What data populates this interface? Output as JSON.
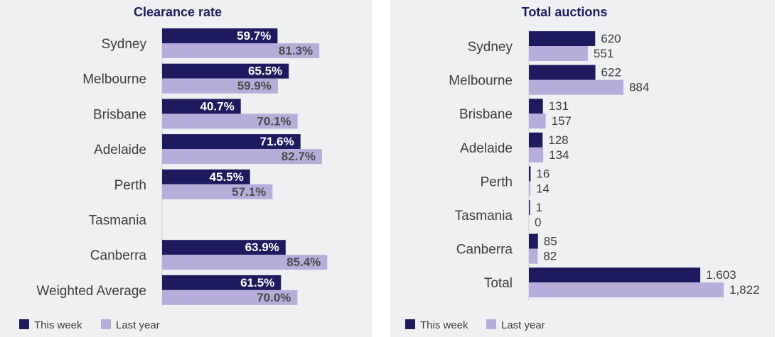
{
  "colors": {
    "this_week": "#1d1a5e",
    "last_year": "#b7addb",
    "panel_bg": "#eef0f2"
  },
  "legend": {
    "this_week": "This week",
    "last_year": "Last year"
  },
  "chart_data": [
    {
      "type": "bar",
      "orientation": "horizontal",
      "title": "Clearance rate",
      "categories": [
        "Sydney",
        "Melbourne",
        "Brisbane",
        "Adelaide",
        "Perth",
        "Tasmania",
        "Canberra",
        "Weighted Average"
      ],
      "series": [
        {
          "name": "This week",
          "values": [
            59.7,
            65.5,
            40.7,
            71.6,
            45.5,
            null,
            63.9,
            61.5
          ],
          "labels": [
            "59.7%",
            "65.5%",
            "40.7%",
            "71.6%",
            "45.5%",
            "",
            "63.9%",
            "61.5%"
          ]
        },
        {
          "name": "Last year",
          "values": [
            81.3,
            59.9,
            70.1,
            82.7,
            57.1,
            null,
            85.4,
            70.0
          ],
          "labels": [
            "81.3%",
            "59.9%",
            "70.1%",
            "82.7%",
            "57.1%",
            "",
            "85.4%",
            "70.0%"
          ]
        }
      ],
      "xlim": [
        0,
        100
      ]
    },
    {
      "type": "bar",
      "orientation": "horizontal",
      "title": "Total auctions",
      "categories": [
        "Sydney",
        "Melbourne",
        "Brisbane",
        "Adelaide",
        "Perth",
        "Tasmania",
        "Canberra",
        "Total"
      ],
      "series": [
        {
          "name": "This week",
          "values": [
            620,
            622,
            131,
            128,
            16,
            1,
            85,
            1603
          ],
          "labels": [
            "620",
            "622",
            "131",
            "128",
            "16",
            "1",
            "85",
            "1,603"
          ]
        },
        {
          "name": "Last year",
          "values": [
            551,
            884,
            157,
            134,
            14,
            0,
            82,
            1822
          ],
          "labels": [
            "551",
            "884",
            "157",
            "134",
            "14",
            "0",
            "82",
            "1,822"
          ]
        }
      ],
      "xlim": [
        0,
        1822
      ]
    }
  ]
}
